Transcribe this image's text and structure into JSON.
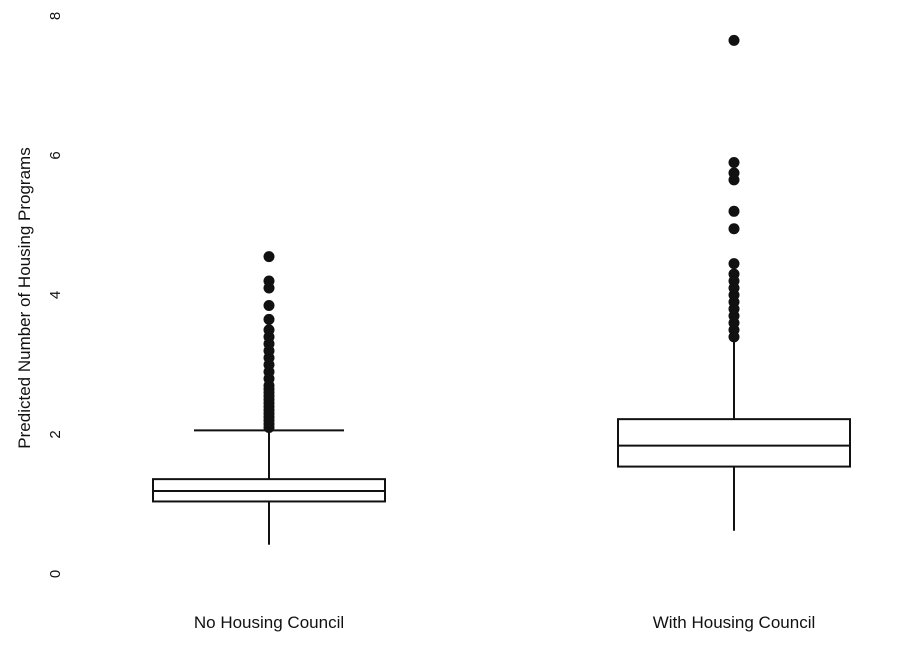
{
  "chart_data": {
    "type": "boxplot",
    "title": "",
    "xlabel": "",
    "ylabel": "Predicted Number of Housing Programs",
    "ylim": [
      0,
      8
    ],
    "yticks": [
      0,
      2,
      4,
      6,
      8
    ],
    "grid": false,
    "categories": [
      "No Housing Council",
      "With Housing Council"
    ],
    "boxes": [
      {
        "category": "No Housing Council",
        "whisker_low": 0.42,
        "q1": 1.04,
        "median": 1.19,
        "q3": 1.36,
        "whisker_high": 2.06,
        "outliers": [
          2.1,
          2.15,
          2.2,
          2.25,
          2.3,
          2.35,
          2.4,
          2.45,
          2.5,
          2.55,
          2.6,
          2.65,
          2.7,
          2.8,
          2.9,
          3.0,
          3.1,
          3.2,
          3.3,
          3.4,
          3.5,
          3.65,
          3.85,
          4.1,
          4.2,
          4.55
        ]
      },
      {
        "category": "With Housing Council",
        "whisker_low": 0.62,
        "q1": 1.54,
        "median": 1.84,
        "q3": 2.22,
        "whisker_high": 3.37,
        "outliers": [
          3.4,
          3.5,
          3.6,
          3.7,
          3.8,
          3.9,
          4.0,
          4.1,
          4.2,
          4.3,
          4.45,
          4.95,
          5.2,
          5.65,
          5.75,
          5.9,
          7.65
        ]
      }
    ],
    "colors": {
      "box_stroke": "#111111",
      "outlier": "#111111"
    }
  }
}
